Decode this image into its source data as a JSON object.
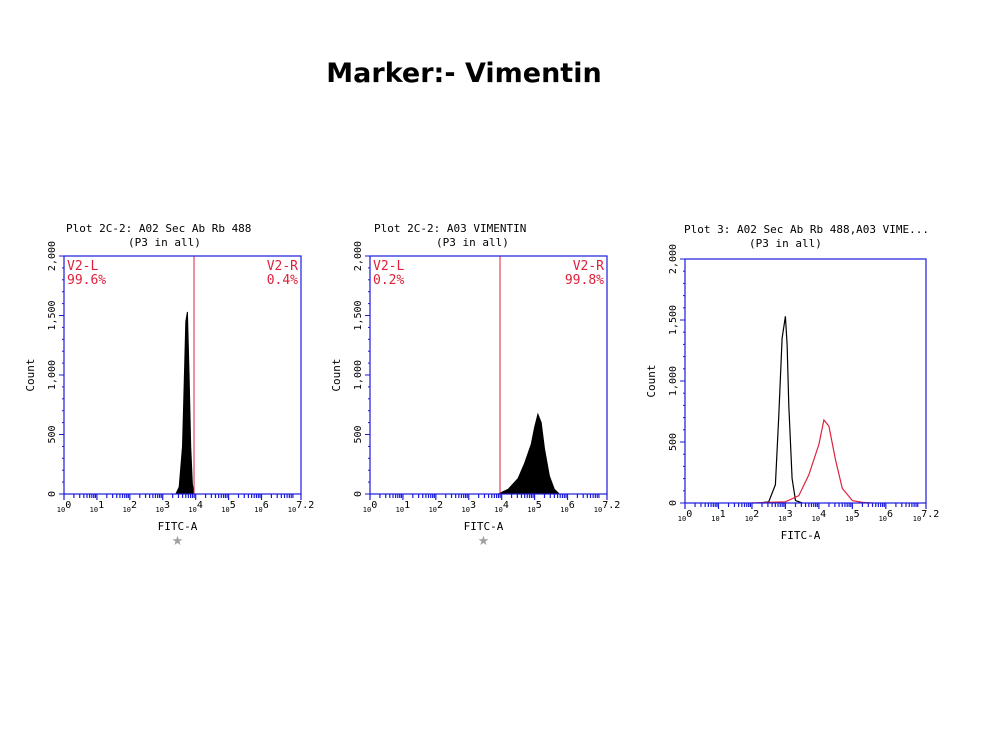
{
  "page_title": "Marker:- Vimentin",
  "colors": {
    "frame": "#1a1adb",
    "gate": "#e0203a",
    "hist_fill": "#000000",
    "marker_star": "#a0a0a0"
  },
  "chart_data": [
    {
      "type": "area",
      "title": "Plot 2C-2: A02 Sec Ab Rb 488",
      "subtitle": "(P3 in all)",
      "xlabel": "FITC-A",
      "ylabel": "Count",
      "x_scale": "log",
      "xlim": [
        0,
        7.2
      ],
      "ylim": [
        0,
        2000
      ],
      "x_ticks": [
        "10^0",
        "10^1",
        "10^2",
        "10^3",
        "10^4",
        "10^5",
        "10^6",
        "10^7.2"
      ],
      "y_ticks": [
        "0",
        "500",
        "1,000",
        "1,500",
        "2,000"
      ],
      "gate": {
        "position_log": 3.95,
        "left_label": "V2-L",
        "left_pct": "99.6%",
        "right_label": "V2-R",
        "right_pct": "0.4%"
      },
      "series": [
        {
          "color": "#000000",
          "filled": true,
          "x": [
            3.4,
            3.5,
            3.6,
            3.65,
            3.7,
            3.75,
            3.8,
            3.85,
            3.9,
            3.95
          ],
          "y": [
            0,
            60,
            400,
            900,
            1450,
            1530,
            1000,
            400,
            80,
            0
          ]
        }
      ],
      "marker_star": true
    },
    {
      "type": "area",
      "title": "Plot 2C-2: A03 VIMENTIN",
      "subtitle": "(P3 in all)",
      "xlabel": "FITC-A",
      "ylabel": "Count",
      "x_scale": "log",
      "xlim": [
        0,
        7.2
      ],
      "ylim": [
        0,
        2000
      ],
      "x_ticks": [
        "10^0",
        "10^1",
        "10^2",
        "10^3",
        "10^4",
        "10^5",
        "10^6",
        "10^7.2"
      ],
      "y_ticks": [
        "0",
        "500",
        "1,000",
        "1,500",
        "2,000"
      ],
      "gate": {
        "position_log": 3.95,
        "left_label": "V2-L",
        "left_pct": "0.2%",
        "right_label": "V2-R",
        "right_pct": "99.8%"
      },
      "series": [
        {
          "color": "#000000",
          "filled": true,
          "x": [
            3.9,
            4.2,
            4.5,
            4.7,
            4.9,
            5.0,
            5.1,
            5.2,
            5.3,
            5.45,
            5.6,
            5.75
          ],
          "y": [
            0,
            40,
            130,
            260,
            420,
            560,
            670,
            600,
            380,
            150,
            40,
            0
          ]
        }
      ],
      "marker_star": true
    },
    {
      "type": "line",
      "title": "Plot 3: A02 Sec Ab Rb 488,A03 VIME...",
      "subtitle": "(P3 in all)",
      "xlabel": "FITC-A",
      "ylabel": "Count",
      "x_scale": "log",
      "xlim": [
        0,
        7.2
      ],
      "ylim": [
        0,
        2000
      ],
      "x_ticks": [
        "10^0",
        "10^1",
        "10^2",
        "10^3",
        "10^4",
        "10^5",
        "10^6",
        "10^7.2"
      ],
      "y_ticks": [
        "0",
        "500",
        "1,000",
        "1,500",
        "2,000"
      ],
      "series": [
        {
          "color": "#000000",
          "filled": false,
          "x": [
            2.2,
            2.5,
            2.7,
            2.8,
            2.9,
            3.0,
            3.05,
            3.1,
            3.2,
            3.3,
            3.5
          ],
          "y": [
            0,
            10,
            150,
            700,
            1350,
            1530,
            1300,
            800,
            200,
            20,
            0
          ]
        },
        {
          "color": "#e0203a",
          "filled": false,
          "x": [
            2.0,
            2.5,
            3.0,
            3.4,
            3.7,
            4.0,
            4.15,
            4.3,
            4.5,
            4.7,
            5.0,
            5.3,
            5.6
          ],
          "y": [
            0,
            5,
            10,
            60,
            230,
            480,
            680,
            630,
            350,
            120,
            20,
            5,
            0
          ]
        }
      ],
      "marker_star": false
    }
  ]
}
